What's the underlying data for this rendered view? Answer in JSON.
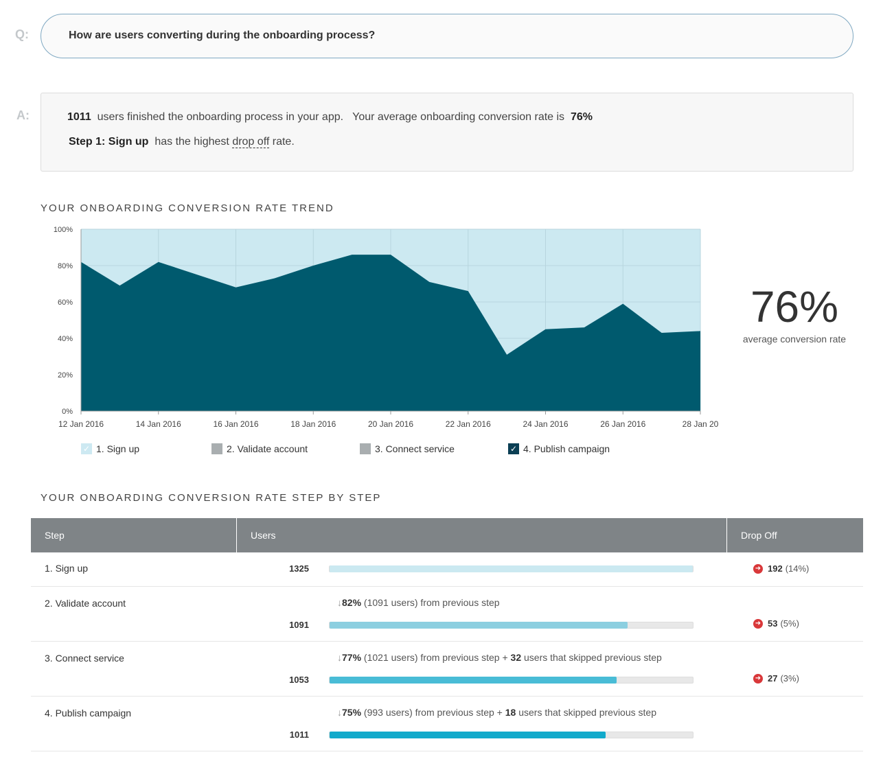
{
  "question": {
    "label": "Q:",
    "text": "How are users converting during the onboarding process?"
  },
  "answer": {
    "label": "A:",
    "finished_count": "1011",
    "finished_text": "users finished the onboarding process in your app.",
    "avg_text": "Your average onboarding conversion rate is",
    "avg_value": "76%",
    "step_prefix": "Step 1:",
    "step_name": "Sign up",
    "highest_text": "has the highest",
    "dropoff_term": "drop off",
    "rate_text": "rate."
  },
  "trend": {
    "title": "YOUR ONBOARDING CONVERSION RATE TREND",
    "big_value": "76%",
    "big_caption": "average conversion rate"
  },
  "chart_data": {
    "type": "area",
    "x": [
      "12 Jan 2016",
      "13 Jan 2016",
      "14 Jan 2016",
      "15 Jan 2016",
      "16 Jan 2016",
      "17 Jan 2016",
      "18 Jan 2016",
      "19 Jan 2016",
      "20 Jan 2016",
      "21 Jan 2016",
      "22 Jan 2016",
      "23 Jan 2016",
      "24 Jan 2016",
      "25 Jan 2016",
      "26 Jan 2016",
      "27 Jan 2016",
      "28 Jan 2016"
    ],
    "x_tick_labels": [
      "12 Jan 2016",
      "14 Jan 2016",
      "16 Jan 2016",
      "18 Jan 2016",
      "20 Jan 2016",
      "22 Jan 2016",
      "24 Jan 2016",
      "26 Jan 2016",
      "28 Jan 20"
    ],
    "series": [
      {
        "name": "4. Publish campaign",
        "values": [
          82,
          69,
          82,
          75,
          68,
          73,
          80,
          86,
          86,
          71,
          66,
          31,
          45,
          46,
          59,
          43,
          44
        ]
      }
    ],
    "background_series": {
      "name": "1. Sign up",
      "value": 100
    },
    "ylim": [
      0,
      100
    ],
    "y_tick_labels": [
      "0%",
      "20%",
      "40%",
      "60%",
      "80%",
      "100%"
    ],
    "grid": true,
    "colors": {
      "area": "#005a6e",
      "background": "#cce9f1",
      "grid": "#b7d5de"
    }
  },
  "legend": [
    {
      "label": "1. Sign up",
      "color": "#cde9f2",
      "checked": true
    },
    {
      "label": "2. Validate account",
      "color": "#a9aeb0",
      "checked": false
    },
    {
      "label": "3. Connect service",
      "color": "#a9aeb0",
      "checked": false
    },
    {
      "label": "4. Publish campaign",
      "color": "#0b3f54",
      "checked": true
    }
  ],
  "steps": {
    "title": "YOUR ONBOARDING CONVERSION RATE STEP BY STEP",
    "headers": {
      "step": "Step",
      "users": "Users",
      "drop": "Drop Off"
    },
    "rows": [
      {
        "name": "1. Sign up",
        "users": "1325",
        "fill": 1.0,
        "color": "#cbe9f1",
        "conv_pct": "",
        "conv_text": "",
        "skipped": "",
        "skipped_text": "",
        "drop_count": "192",
        "drop_pct": "(14%)"
      },
      {
        "name": "2. Validate account",
        "users": "1091",
        "fill": 0.82,
        "color": "#8ccfe0",
        "conv_pct": "82%",
        "conv_text": "(1091 users) from previous step",
        "skipped": "",
        "skipped_text": "",
        "drop_count": "53",
        "drop_pct": "(5%)"
      },
      {
        "name": "3. Connect service",
        "users": "1053",
        "fill": 0.79,
        "color": "#49bcd6",
        "conv_pct": "77%",
        "conv_text": "(1021 users) from previous step +",
        "skipped": "32",
        "skipped_text": "users that skipped previous step",
        "drop_count": "27",
        "drop_pct": "(3%)"
      },
      {
        "name": "4. Publish campaign",
        "users": "1011",
        "fill": 0.76,
        "color": "#12aacb",
        "conv_pct": "75%",
        "conv_text": "(993 users) from previous step +",
        "skipped": "18",
        "skipped_text": "users that skipped previous step",
        "drop_count": "",
        "drop_pct": ""
      }
    ]
  }
}
